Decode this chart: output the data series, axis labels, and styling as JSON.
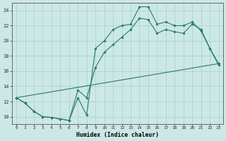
{
  "xlabel": "Humidex (Indice chaleur)",
  "bg_color": "#cce8e5",
  "grid_color": "#aad4d0",
  "line_color": "#2a7a6a",
  "xlim": [
    -0.5,
    23.5
  ],
  "ylim": [
    9.0,
    25.0
  ],
  "xticks": [
    0,
    1,
    2,
    3,
    4,
    5,
    6,
    7,
    8,
    9,
    10,
    11,
    12,
    13,
    14,
    15,
    16,
    17,
    18,
    19,
    20,
    21,
    22,
    23
  ],
  "yticks": [
    10,
    12,
    14,
    16,
    18,
    20,
    22,
    24
  ],
  "line1_x": [
    0,
    1,
    2,
    3,
    4,
    5,
    6,
    7,
    8,
    9,
    10,
    11,
    12,
    13,
    14,
    15,
    16,
    17,
    18,
    19,
    20,
    21,
    22,
    23
  ],
  "line1_y": [
    12.5,
    11.8,
    10.7,
    10.0,
    9.9,
    9.7,
    9.5,
    12.5,
    10.2,
    19.0,
    20.0,
    21.5,
    22.0,
    22.2,
    24.5,
    24.5,
    22.2,
    22.5,
    22.0,
    22.0,
    22.5,
    21.3,
    19.0,
    16.8
  ],
  "line2_x": [
    0,
    1,
    2,
    3,
    4,
    5,
    6,
    7,
    8,
    9,
    10,
    11,
    12,
    13,
    14,
    15,
    16,
    17,
    18,
    19,
    20,
    21,
    22,
    23
  ],
  "line2_y": [
    12.5,
    11.8,
    10.7,
    10.0,
    9.9,
    9.7,
    9.5,
    13.5,
    12.5,
    16.5,
    18.5,
    19.5,
    20.5,
    21.5,
    23.0,
    22.8,
    21.0,
    21.5,
    21.2,
    21.0,
    22.2,
    21.5,
    19.0,
    17.0
  ],
  "line3_x": [
    0,
    23
  ],
  "line3_y": [
    12.5,
    17.0
  ]
}
